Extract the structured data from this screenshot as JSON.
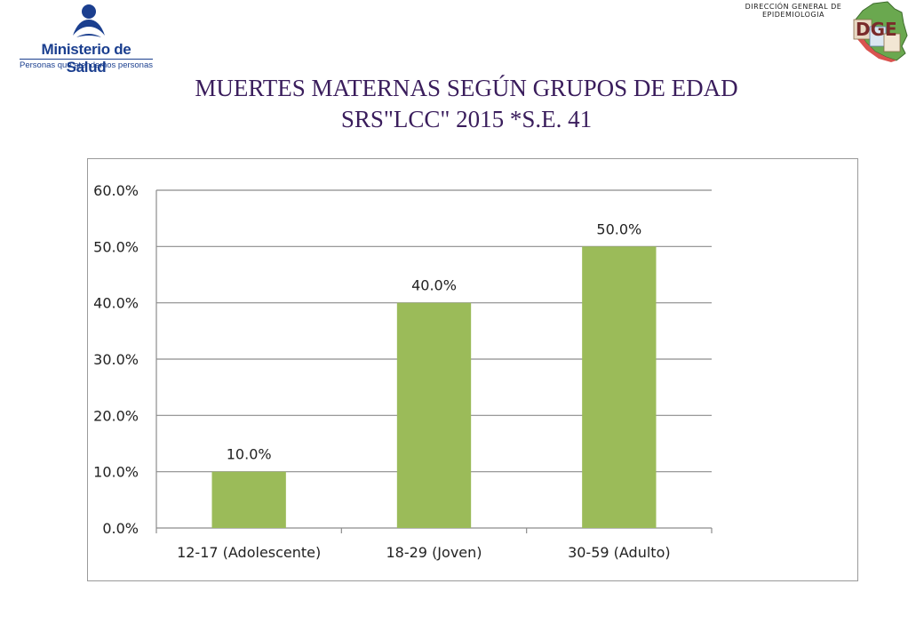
{
  "header": {
    "minsa_name": "Ministerio de Salud",
    "minsa_tagline": "Personas que atendemos personas",
    "dge_line1": "DIRECCIÓN GENERAL DE",
    "dge_line2": "EPIDEMIOLOGIA",
    "dge_letters": "DGE"
  },
  "title": {
    "line1": "MUERTES MATERNAS SEGÚN GRUPOS DE EDAD",
    "line2": "SRS\"LCC\" 2015 *S.E. 41"
  },
  "colors": {
    "bar": "#9bbb59",
    "title": "#3a1d5c",
    "brand": "#1b3f8f"
  },
  "chart_data": {
    "type": "bar",
    "categories": [
      "12-17 (Adolescente)",
      "18-29 (Joven)",
      "30-59 (Adulto)"
    ],
    "values": [
      10.0,
      40.0,
      50.0
    ],
    "data_labels": [
      "10.0%",
      "40.0%",
      "50.0%"
    ],
    "ylim": [
      0,
      60
    ],
    "yticks": [
      0,
      10,
      20,
      30,
      40,
      50,
      60
    ],
    "ytick_labels": [
      "0.0%",
      "10.0%",
      "20.0%",
      "30.0%",
      "40.0%",
      "50.0%",
      "60.0%"
    ],
    "grid": true,
    "legend": "none",
    "xlabel": "",
    "ylabel": ""
  }
}
